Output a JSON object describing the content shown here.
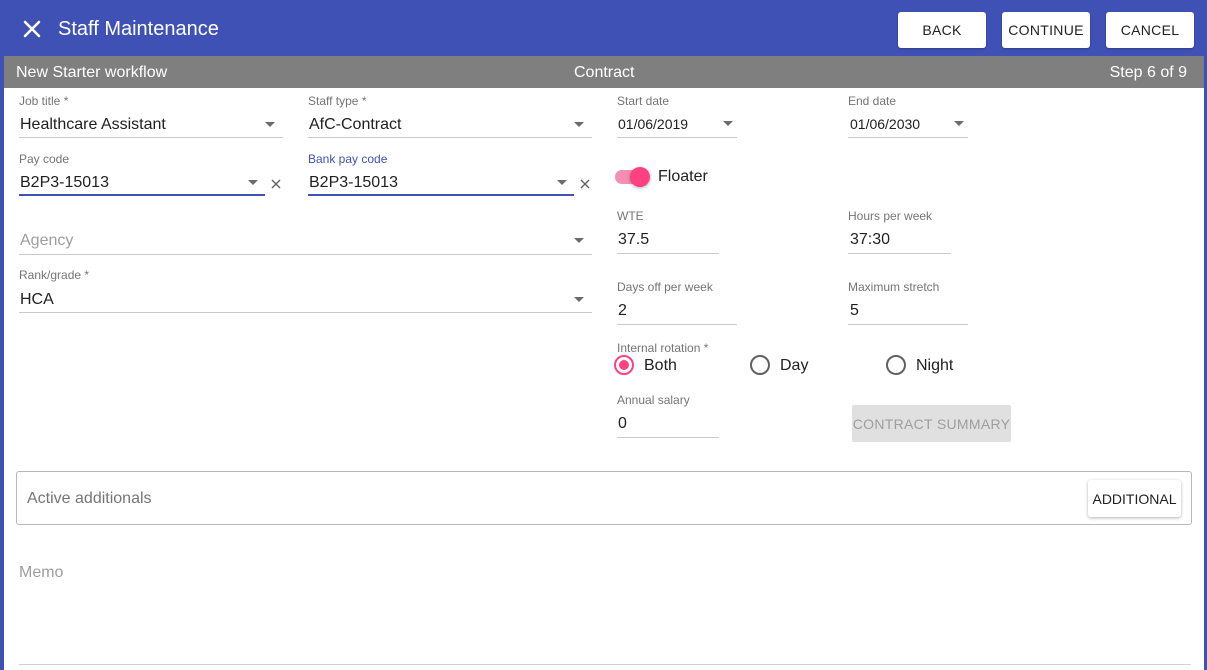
{
  "header": {
    "title": "Staff Maintenance",
    "back_label": "BACK",
    "continue_label": "CONTINUE",
    "cancel_label": "CANCEL"
  },
  "workflow": {
    "name": "New Starter workflow",
    "step_title": "Contract",
    "step": "Step 6 of 9"
  },
  "fields": {
    "job_title": {
      "label": "Job title *",
      "value": "Healthcare Assistant"
    },
    "staff_type": {
      "label": "Staff type *",
      "value": "AfC-Contract"
    },
    "start_date": {
      "label": "Start date",
      "value": "01/06/2019"
    },
    "end_date": {
      "label": "End date",
      "value": "01/06/2030"
    },
    "pay_code": {
      "label": "Pay code",
      "value": "B2P3-15013"
    },
    "bank_pay_code": {
      "label": "Bank pay code",
      "value": "B2P3-15013"
    },
    "floater": {
      "label": "Floater",
      "checked": true
    },
    "agency": {
      "placeholder": "Agency"
    },
    "wte": {
      "label": "WTE",
      "value": "37.5"
    },
    "hours_per_week": {
      "label": "Hours per week",
      "value": "37:30"
    },
    "rank_grade": {
      "label": "Rank/grade *",
      "value": "HCA"
    },
    "days_off": {
      "label": "Days off per week",
      "value": "2"
    },
    "max_stretch": {
      "label": "Maximum stretch",
      "value": "5"
    },
    "internal_rotation": {
      "label": "Internal rotation *",
      "options": [
        "Both",
        "Day",
        "Night"
      ],
      "selected": "Both"
    },
    "annual_salary": {
      "label": "Annual salary",
      "value": "0"
    }
  },
  "contract_summary_label": "CONTRACT SUMMARY",
  "additionals": {
    "title": "Active additionals",
    "button_label": "ADDITIONAL"
  },
  "memo": {
    "placeholder": "Memo"
  },
  "colors": {
    "primary": "#3f51b5",
    "accent": "#ff4081",
    "subbar": "#7f7f7f"
  }
}
